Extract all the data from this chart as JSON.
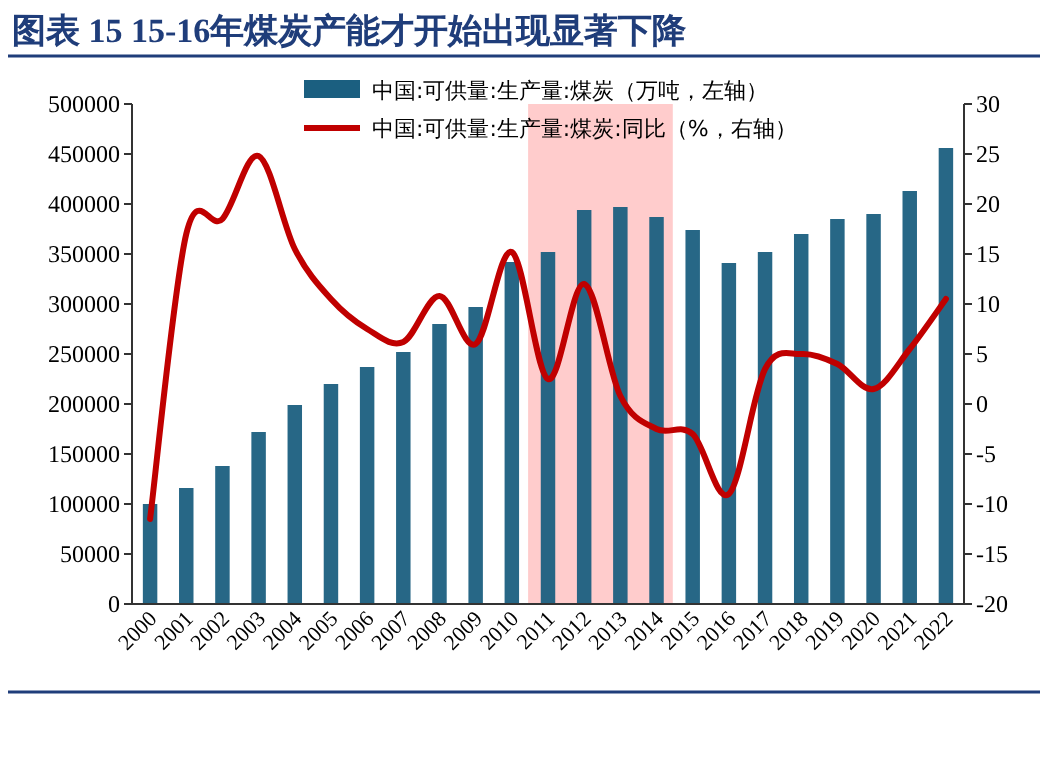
{
  "chart_data": {
    "type": "bar",
    "title": "图表 15   15-16年煤炭产能才开始出现显著下降",
    "categories": [
      "2000",
      "2001",
      "2002",
      "2003",
      "2004",
      "2005",
      "2006",
      "2007",
      "2008",
      "2009",
      "2010",
      "2011",
      "2012",
      "2013",
      "2014",
      "2015",
      "2016",
      "2017",
      "2018",
      "2019",
      "2020",
      "2021",
      "2022"
    ],
    "series": [
      {
        "name": "中国:可供量:生产量:煤炭（万吨，左轴）",
        "color": "#1b5f80",
        "values": [
          100000,
          116000,
          138000,
          172000,
          199000,
          220000,
          237000,
          252000,
          280000,
          297000,
          342000,
          352000,
          394000,
          397000,
          387000,
          374000,
          341000,
          352000,
          370000,
          385000,
          390000,
          413000,
          456000
        ]
      },
      {
        "name": "中国:可供量:生产量:煤炭:同比（%，右轴）",
        "type": "line",
        "axis": "y2",
        "color": "#c00000",
        "values": [
          -11.5,
          17,
          18.5,
          24.8,
          15.5,
          10.5,
          7.5,
          6.2,
          10.8,
          6,
          15.2,
          2.5,
          12,
          0.8,
          -2.5,
          -3,
          -9,
          3.5,
          5,
          4,
          1.5,
          5.5,
          10.5
        ]
      }
    ],
    "ylim": [
      0,
      500000
    ],
    "yticks": [
      0,
      50000,
      100000,
      150000,
      200000,
      250000,
      300000,
      350000,
      400000,
      450000,
      500000
    ],
    "y2lim": [
      -20,
      30
    ],
    "y2ticks": [
      -20,
      -15,
      -10,
      -5,
      0,
      5,
      10,
      15,
      20,
      25,
      30
    ],
    "bands": [
      {
        "axis": "x",
        "from": "2011",
        "to": "2014",
        "color": "#ffbfbf"
      }
    ],
    "legend": "top",
    "grid": false
  }
}
